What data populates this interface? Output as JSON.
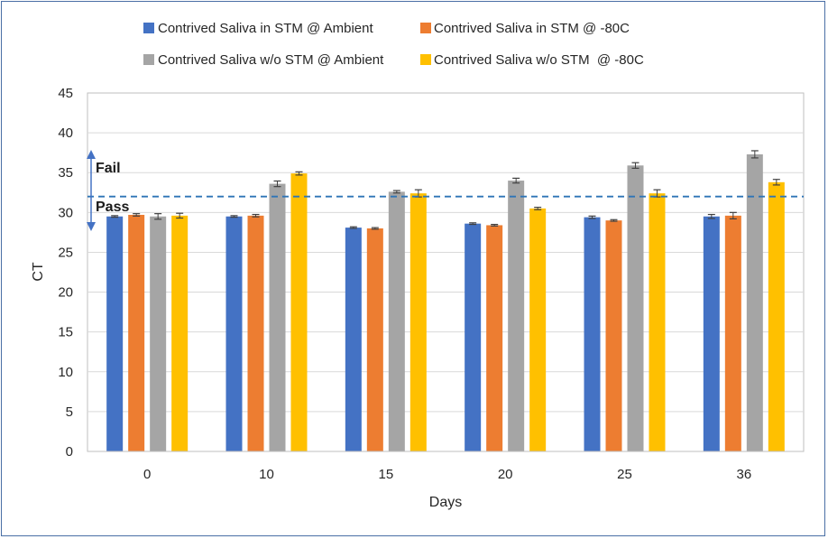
{
  "chart_data": {
    "type": "bar",
    "title": "",
    "xlabel": "Days",
    "ylabel": "CT",
    "ylim": [
      0,
      45
    ],
    "yticks": [
      0,
      5,
      10,
      15,
      20,
      25,
      30,
      35,
      40,
      45
    ],
    "grid": "horizontal",
    "legend_position": "top",
    "categories": [
      "0",
      "10",
      "15",
      "20",
      "25",
      "36"
    ],
    "series": [
      {
        "name": "Contrived Saliva in STM @ Ambient",
        "color": "#4472C4",
        "values": [
          29.5,
          29.5,
          28.1,
          28.6,
          29.4,
          29.5
        ],
        "errors": [
          0.1,
          0.1,
          0.1,
          0.1,
          0.15,
          0.25
        ]
      },
      {
        "name": "Contrived Saliva in STM @ -80C",
        "color": "#ED7D31",
        "values": [
          29.7,
          29.6,
          28.0,
          28.4,
          29.0,
          29.6
        ],
        "errors": [
          0.15,
          0.15,
          0.1,
          0.1,
          0.1,
          0.4
        ]
      },
      {
        "name": "Contrived Saliva w/o STM @ Ambient",
        "color": "#A5A5A5",
        "values": [
          29.5,
          33.6,
          32.6,
          34.0,
          35.9,
          37.3
        ],
        "errors": [
          0.35,
          0.35,
          0.15,
          0.3,
          0.35,
          0.45
        ]
      },
      {
        "name": "Contrived Saliva w/o STM  @ -80C",
        "color": "#FFC000",
        "values": [
          29.6,
          34.9,
          32.4,
          30.5,
          32.4,
          33.8
        ],
        "errors": [
          0.3,
          0.2,
          0.45,
          0.15,
          0.45,
          0.35
        ]
      }
    ],
    "threshold": {
      "value": 32,
      "style": "dashed",
      "color": "#2E75B6"
    },
    "annotations": [
      {
        "text": "Fail",
        "arrow": "up"
      },
      {
        "text": "Pass",
        "arrow": "down"
      }
    ]
  }
}
